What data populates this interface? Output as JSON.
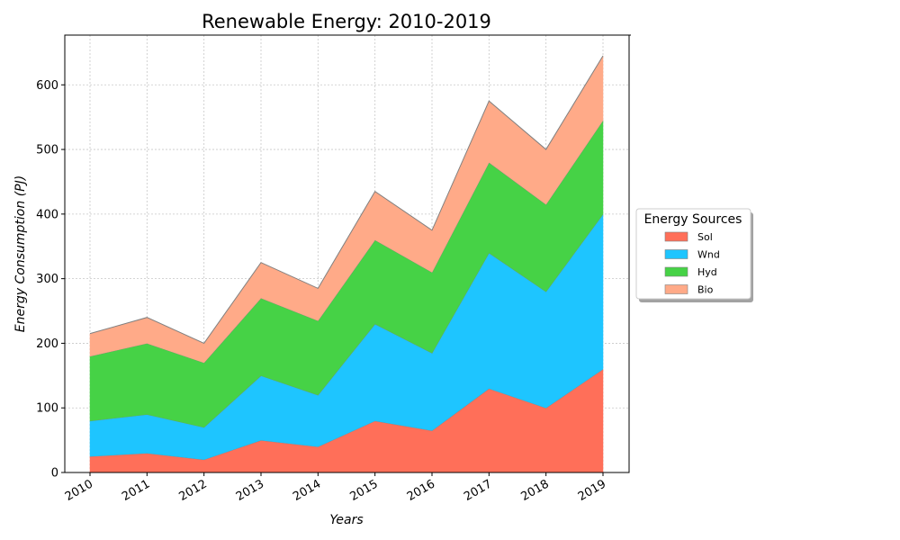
{
  "chart_data": {
    "type": "area",
    "stacked": true,
    "title": "Renewable Energy: 2010-2019",
    "xlabel": "Years",
    "ylabel": "Energy Consumption (PJ)",
    "categories": [
      "2010",
      "2011",
      "2012",
      "2013",
      "2014",
      "2015",
      "2016",
      "2017",
      "2018",
      "2019"
    ],
    "y_ticks": [
      0,
      100,
      200,
      300,
      400,
      500,
      600
    ],
    "ylim": [
      0,
      677
    ],
    "grid": true,
    "legend": {
      "title": "Energy Sources",
      "placement": "right"
    },
    "series": [
      {
        "name": "Sol",
        "color": "#ff6f59",
        "values": [
          25,
          30,
          20,
          50,
          40,
          80,
          65,
          130,
          100,
          160
        ]
      },
      {
        "name": "Wnd",
        "color": "#1ec5ff",
        "values": [
          55,
          60,
          50,
          100,
          80,
          150,
          120,
          210,
          180,
          240
        ]
      },
      {
        "name": "Hyd",
        "color": "#46d246",
        "values": [
          100,
          110,
          100,
          120,
          115,
          130,
          125,
          140,
          135,
          145
        ]
      },
      {
        "name": "Bio",
        "color": "#ffaa88",
        "values": [
          35,
          40,
          30,
          55,
          50,
          75,
          65,
          95,
          85,
          100
        ]
      }
    ]
  }
}
